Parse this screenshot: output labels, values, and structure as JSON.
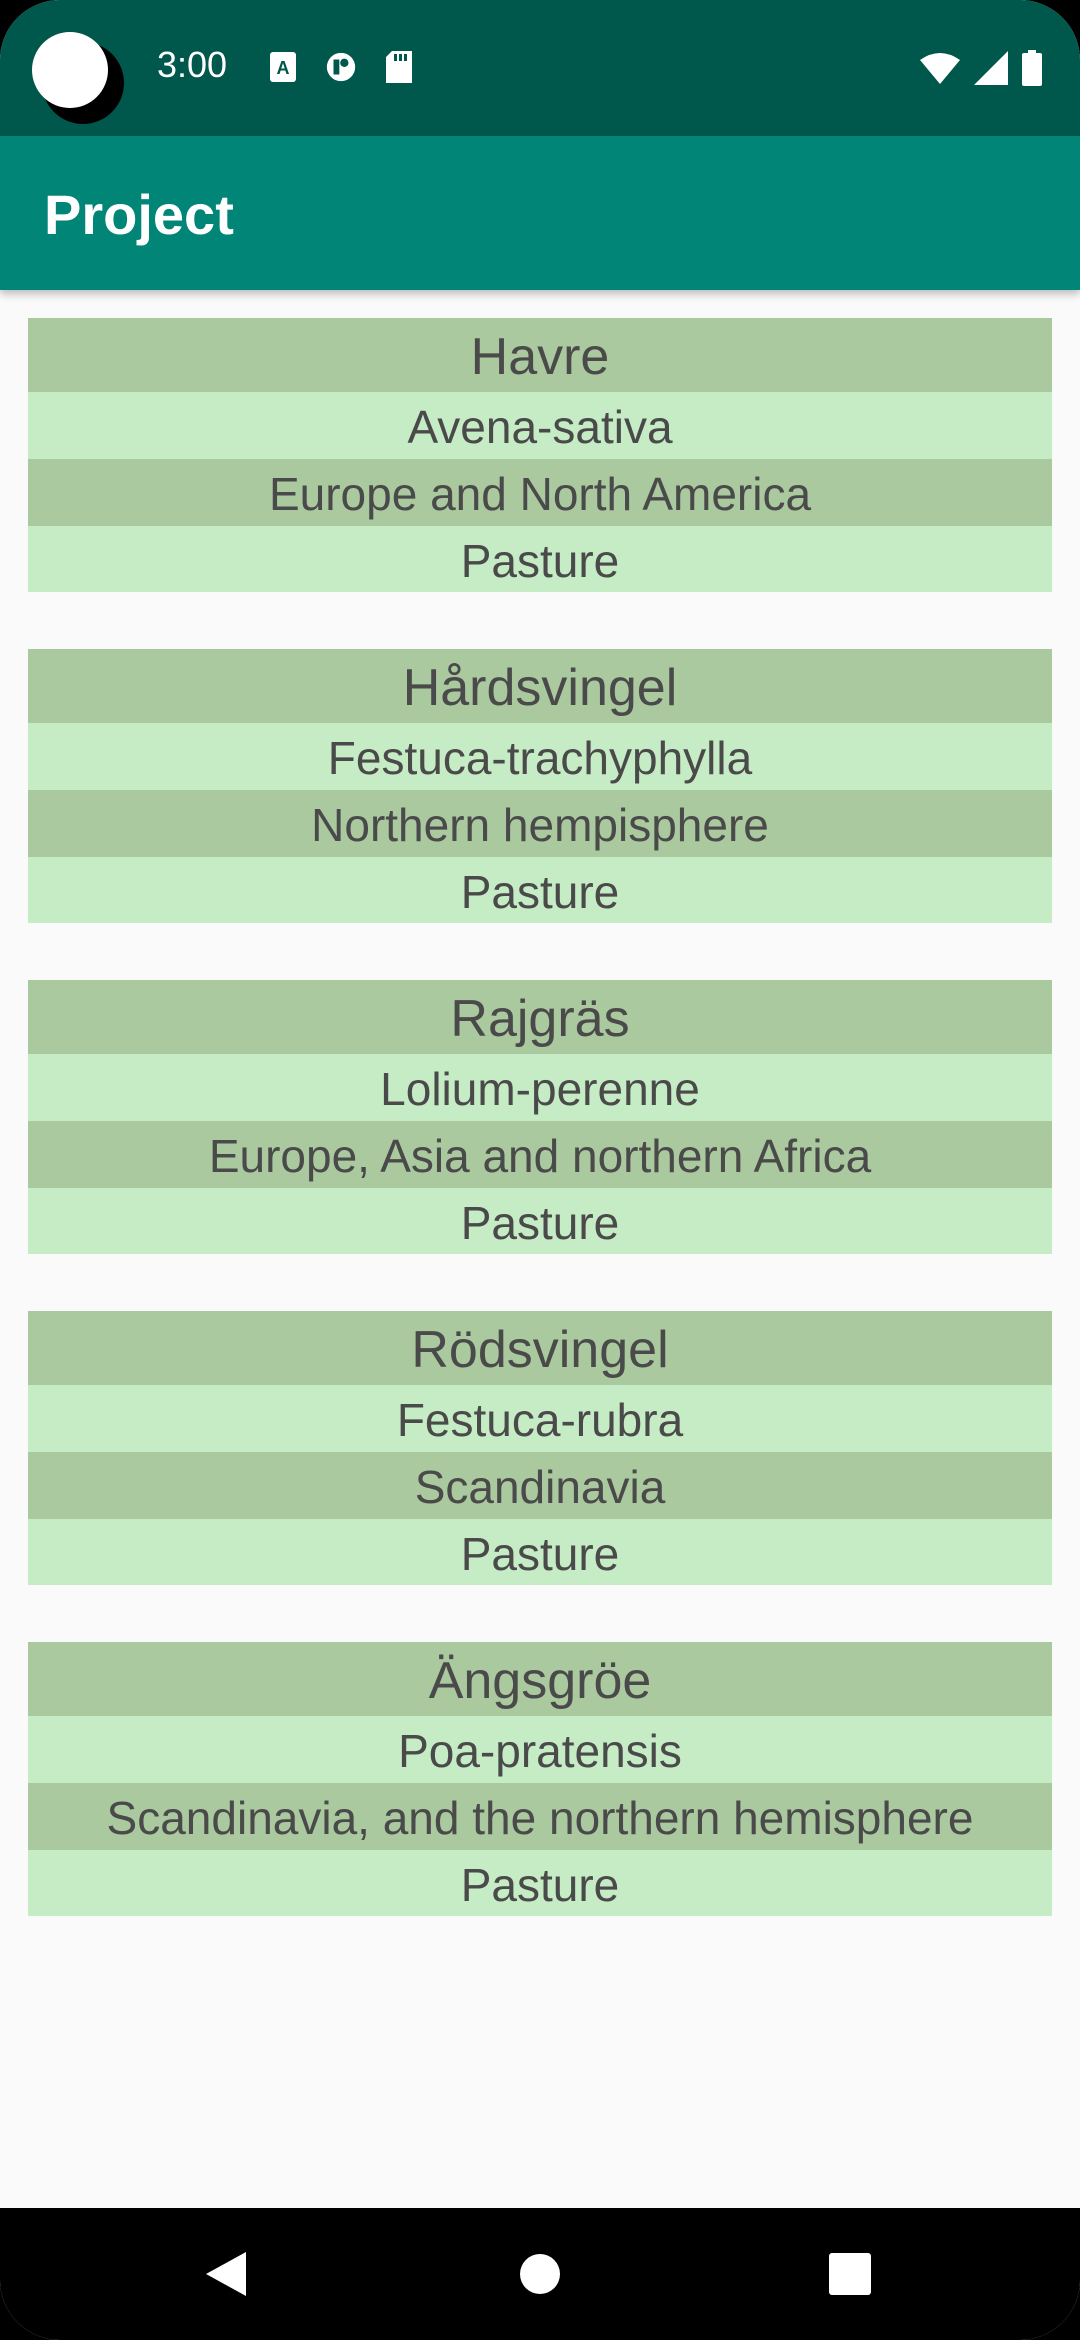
{
  "status_bar": {
    "time": "3:00",
    "icons_left": [
      "a-icon",
      "contrast-icon",
      "sd-card-icon"
    ],
    "icons_right": [
      "wifi-icon",
      "signal-icon",
      "battery-icon"
    ]
  },
  "app_bar": {
    "title": "Project"
  },
  "plants": [
    {
      "name": "Havre",
      "latin": "Avena-sativa",
      "region": "Europe and North America",
      "usage": "Pasture"
    },
    {
      "name": "Hårdsvingel",
      "latin": "Festuca-trachyphylla",
      "region": "Northern hempisphere",
      "usage": "Pasture"
    },
    {
      "name": "Rajgräs",
      "latin": "Lolium-perenne",
      "region": "Europe, Asia and northern Africa",
      "usage": "Pasture"
    },
    {
      "name": "Rödsvingel",
      "latin": "Festuca-rubra",
      "region": "Scandinavia",
      "usage": "Pasture"
    },
    {
      "name": "Ängsgröe",
      "latin": "Poa-pratensis",
      "region": "Scandinavia, and the northern hemisphere",
      "usage": "Pasture"
    }
  ],
  "colors": {
    "status_bar": "#00574b",
    "app_bar": "#008577",
    "row_dark": "#aac99f",
    "row_light": "#c6ecc6"
  },
  "nav_bar": {
    "buttons": [
      "back-icon",
      "home-icon",
      "recents-icon"
    ]
  }
}
